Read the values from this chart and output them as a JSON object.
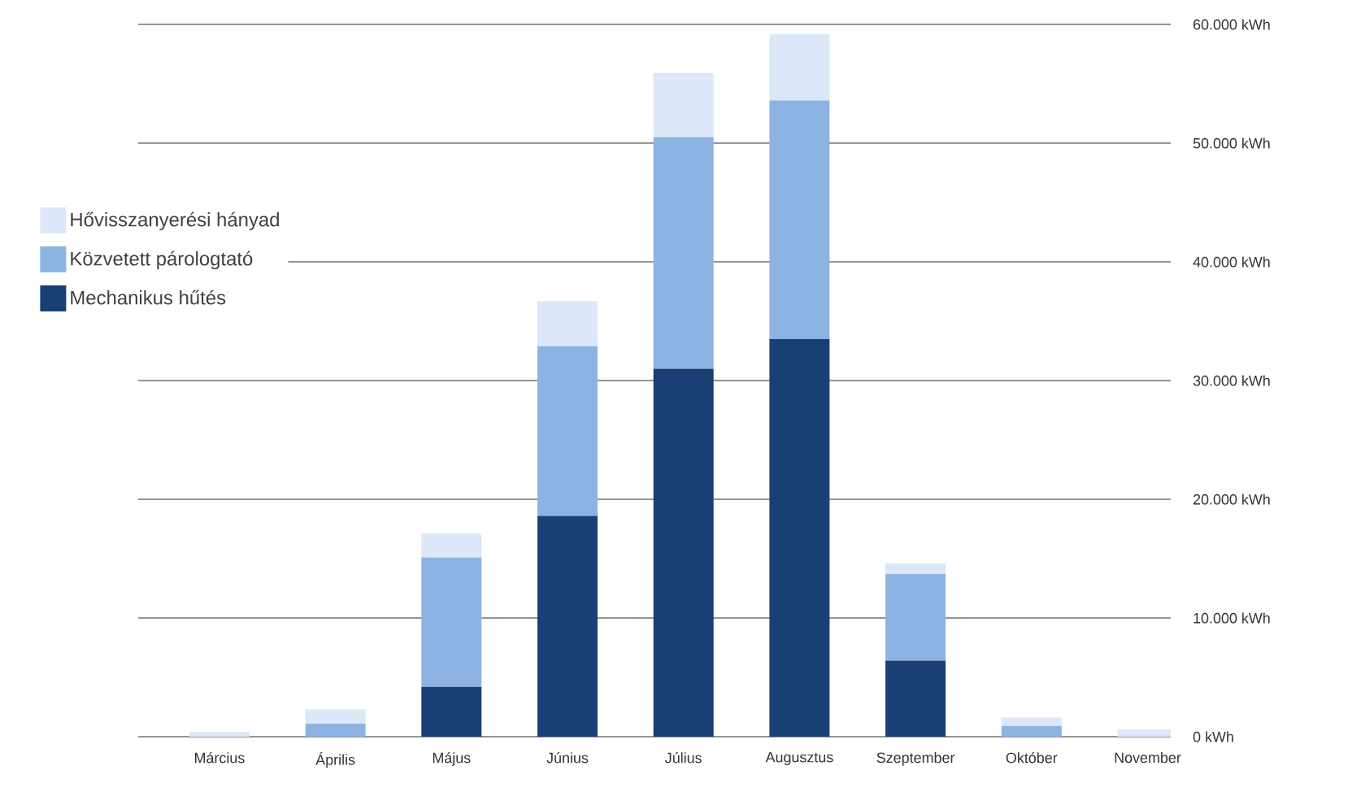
{
  "chart_data": {
    "type": "bar",
    "stacked": true,
    "legend": "left",
    "grid": "y",
    "categories": [
      "Március",
      "Április",
      "Május",
      "Június",
      "Július",
      "Augusztus",
      "Szeptember",
      "Október",
      "November"
    ],
    "series": [
      {
        "name": "Mechanikus hűtés",
        "color": "#1a3f75",
        "values": [
          0,
          0,
          4200,
          18600,
          31000,
          33500,
          6400,
          0,
          0
        ]
      },
      {
        "name": "Közvetett párologtató",
        "color": "#8db3e2",
        "values": [
          0,
          1100,
          10900,
          14300,
          19500,
          20100,
          7300,
          900,
          0
        ]
      },
      {
        "name": "Hővisszanyerési hányad",
        "color": "#dce8f7",
        "values": [
          400,
          1200,
          2000,
          3800,
          5400,
          5600,
          900,
          700,
          600
        ]
      }
    ],
    "ylim": [
      0,
      60000
    ],
    "yticks": [
      {
        "value": 0,
        "label": "0 kWh"
      },
      {
        "value": 10000,
        "label": "10.000 kWh"
      },
      {
        "value": 20000,
        "label": "20.000 kWh"
      },
      {
        "value": 30000,
        "label": "30.000 kWh"
      },
      {
        "value": 40000,
        "label": "40.000 kWh"
      },
      {
        "value": 50000,
        "label": "50.000 kWh"
      },
      {
        "value": 60000,
        "label": "60.000 kWh"
      }
    ]
  }
}
